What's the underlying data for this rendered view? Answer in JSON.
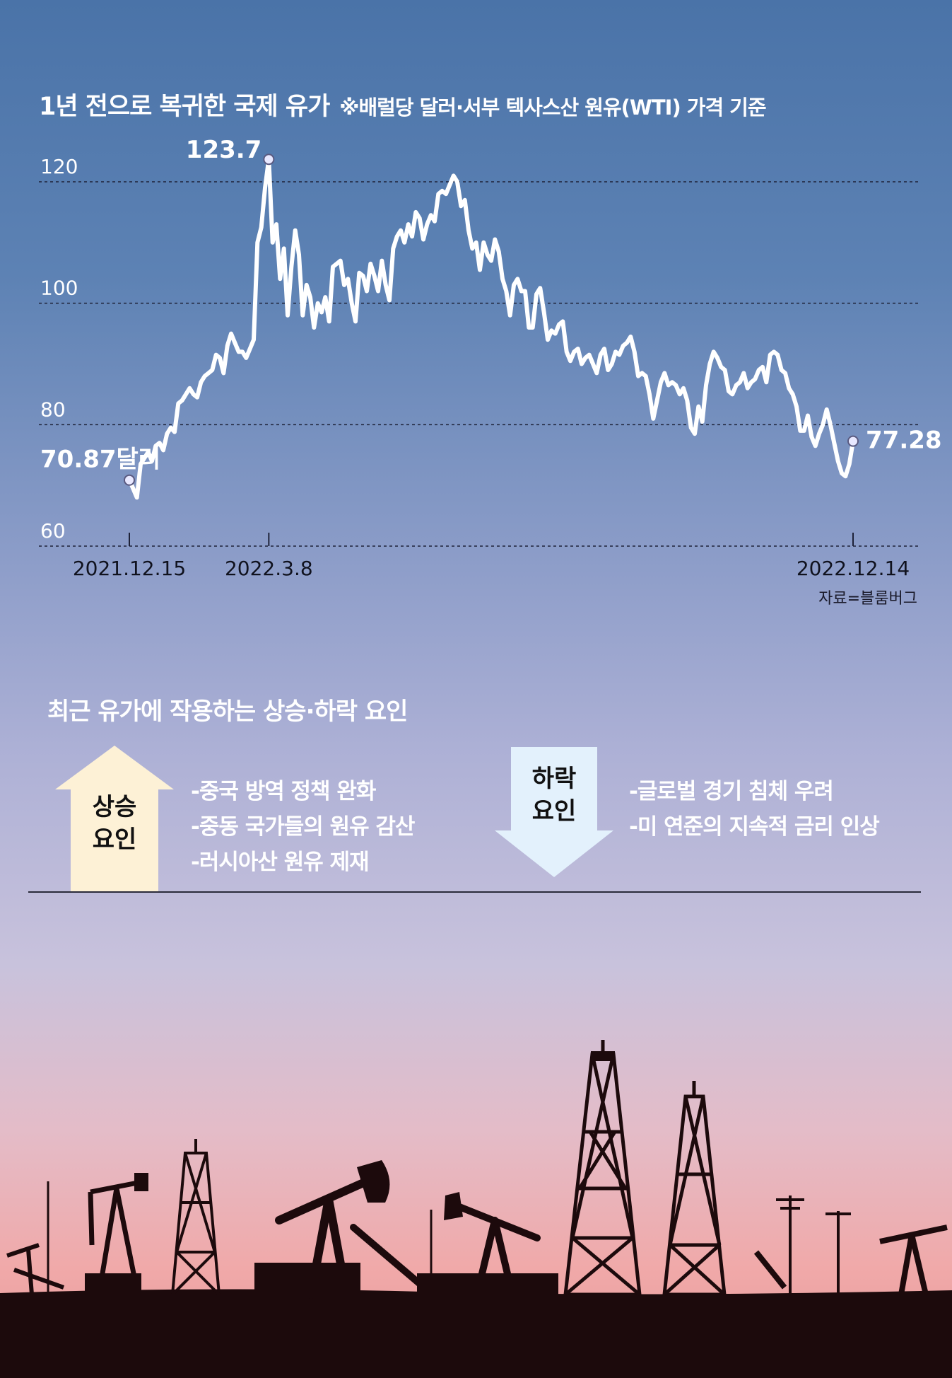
{
  "title": "1년 전으로 복귀한 국제 유가",
  "subtitle": "※배럴당 달러·서부 텍사스산 원유(WTI) 가격 기준",
  "source": "자료=블룸버그",
  "chart_data": {
    "type": "line",
    "title": "1년 전으로 복귀한 국제 유가",
    "subtitle": "※배럴당 달러·서부 텍사스산 원유(WTI) 가격 기준",
    "y_ticks": [
      "120",
      "100",
      "80",
      "60"
    ],
    "ylim": [
      60,
      123.7
    ],
    "grid": true,
    "x_labels": [
      "2021.12.15",
      "2022.3.8",
      "2022.12.14"
    ],
    "start": {
      "date": "2021.12.15",
      "value": 70.87,
      "label": "70.87달러"
    },
    "peak": {
      "date": "2022.3.8",
      "value": 123.7,
      "label": "123.7"
    },
    "end": {
      "date": "2022.12.14",
      "value": 77.28,
      "label": "77.28"
    },
    "series": [
      {
        "values": [
          70.9,
          69.5,
          68.0,
          73.5,
          74.5,
          75.5,
          74.0,
          76.5,
          77.0,
          75.8,
          78.5,
          79.5,
          78.8,
          83.5,
          84.0,
          85.0,
          86.0,
          85.0,
          84.5,
          87.0,
          88.0,
          88.5,
          89.0,
          91.5,
          91.0,
          88.5,
          93.0,
          95.0,
          93.5,
          92.0,
          92.0,
          91.0,
          92.5,
          94.0,
          110.0,
          112.5,
          119.0,
          123.7,
          110.0,
          113.0,
          104.0,
          109.0,
          98.0,
          106.0,
          112.0,
          108.0,
          98.0,
          103.0,
          101.0,
          96.0,
          100.0,
          98.5,
          101.0,
          97.0,
          106.0,
          106.5,
          107.0,
          103.0,
          104.0,
          100.0,
          97.0,
          105.0,
          104.5,
          102.0,
          106.5,
          104.5,
          102.0,
          107.0,
          103.0,
          100.5,
          109.0,
          111.0,
          112.0,
          110.0,
          113.0,
          111.0,
          115.0,
          114.0,
          110.5,
          113.0,
          114.5,
          113.5,
          118.0,
          118.5,
          118.0,
          119.5,
          121.0,
          120.0,
          116.0,
          117.0,
          112.0,
          109.0,
          110.0,
          105.5,
          110.0,
          108.0,
          107.0,
          110.5,
          108.5,
          104.0,
          102.0,
          98.0,
          103.0,
          104.0,
          102.0,
          102.0,
          96.0,
          96.0,
          101.5,
          102.5,
          98.5,
          94.0,
          95.5,
          95.0,
          96.5,
          97.0,
          92.0,
          90.5,
          92.0,
          92.5,
          90.0,
          91.0,
          91.5,
          90.0,
          88.5,
          91.5,
          92.5,
          89.0,
          90.0,
          92.0,
          91.5,
          93.0,
          93.5,
          94.5,
          92.0,
          88.0,
          88.5,
          88.0,
          85.0,
          81.0,
          84.0,
          87.0,
          88.5,
          86.5,
          87.0,
          86.5,
          85.0,
          86.0,
          84.0,
          79.5,
          78.5,
          83.0,
          80.5,
          86.5,
          90.0,
          92.0,
          91.0,
          89.5,
          89.0,
          85.5,
          85.0,
          86.5,
          87.0,
          88.5,
          86.0,
          87.0,
          87.5,
          89.0,
          89.5,
          87.0,
          91.5,
          92.0,
          91.5,
          89.0,
          88.5,
          86.0,
          85.0,
          83.0,
          79.0,
          79.0,
          81.5,
          78.0,
          76.5,
          78.5,
          80.0,
          82.5,
          80.0,
          77.0,
          74.0,
          72.0,
          71.5,
          73.5,
          77.28
        ]
      }
    ]
  },
  "factors": {
    "title": "최근 유가에 작용하는 상승·하락 요인",
    "up": {
      "label_line1": "상승",
      "label_line2": "요인",
      "items": [
        "-중국 방역 정책 완화",
        "-중동 국가들의 원유 감산",
        "-러시아산 원유 제재"
      ]
    },
    "down": {
      "label_line1": "하락",
      "label_line2": "요인",
      "items": [
        "-글로벌 경기 침체 우려",
        "-미 연준의 지속적 금리 인상"
      ]
    }
  },
  "colors": {
    "up_arrow": "#fdf1d6",
    "down_arrow": "#e3f1fc",
    "line": "#ffffff",
    "silhouette": "#1c0a0c"
  }
}
